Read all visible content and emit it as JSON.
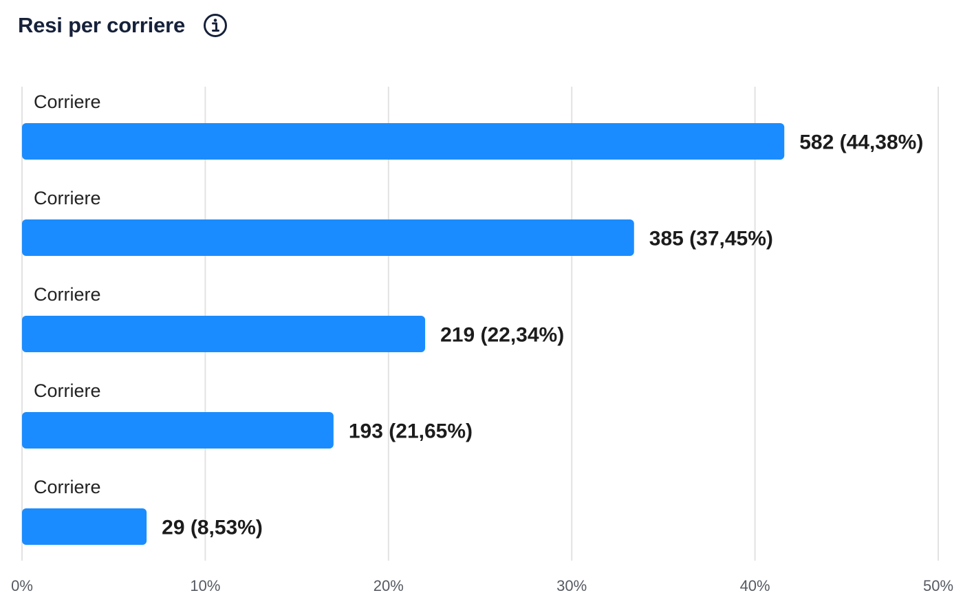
{
  "header": {
    "title": "Resi per corriere",
    "info_icon": "info-icon"
  },
  "colors": {
    "bar": "#1b8cff",
    "title": "#16213a",
    "grid": "#e2e2e2"
  },
  "chart_data": {
    "type": "bar",
    "orientation": "horizontal",
    "title": "Resi per corriere",
    "categories": [
      "Corriere",
      "Corriere",
      "Corriere",
      "Corriere",
      "Corriere"
    ],
    "values": [
      41.6,
      33.4,
      22.0,
      17.0,
      6.8
    ],
    "data_labels": [
      "582 (44,38%)",
      "385 (37,45%)",
      "219 (22,34%)",
      "193 (21,65%)",
      "29 (8,53%)"
    ],
    "xlim": [
      0,
      50
    ],
    "xticks": [
      0,
      10,
      20,
      30,
      40,
      50
    ],
    "xtick_labels": [
      "0%",
      "10%",
      "20%",
      "30%",
      "40%",
      "50%"
    ],
    "xlabel": "",
    "ylabel": "",
    "grid": true,
    "legend": "none"
  }
}
